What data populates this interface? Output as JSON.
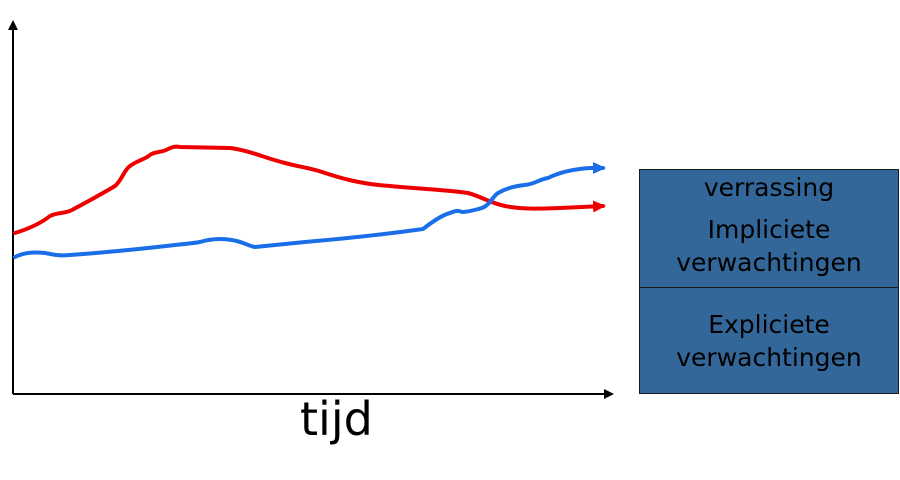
{
  "diagram": {
    "x_axis_label": "tijd",
    "legend_boxes": [
      {
        "label": "verrassing"
      },
      {
        "label": "Impliciete\nverwachtingen"
      },
      {
        "label": "Expliciete\nverwachtingen"
      }
    ],
    "series_colors": {
      "red_line": "#ee0000",
      "blue_line": "#1a6fe8"
    },
    "box_color": "#336699"
  }
}
